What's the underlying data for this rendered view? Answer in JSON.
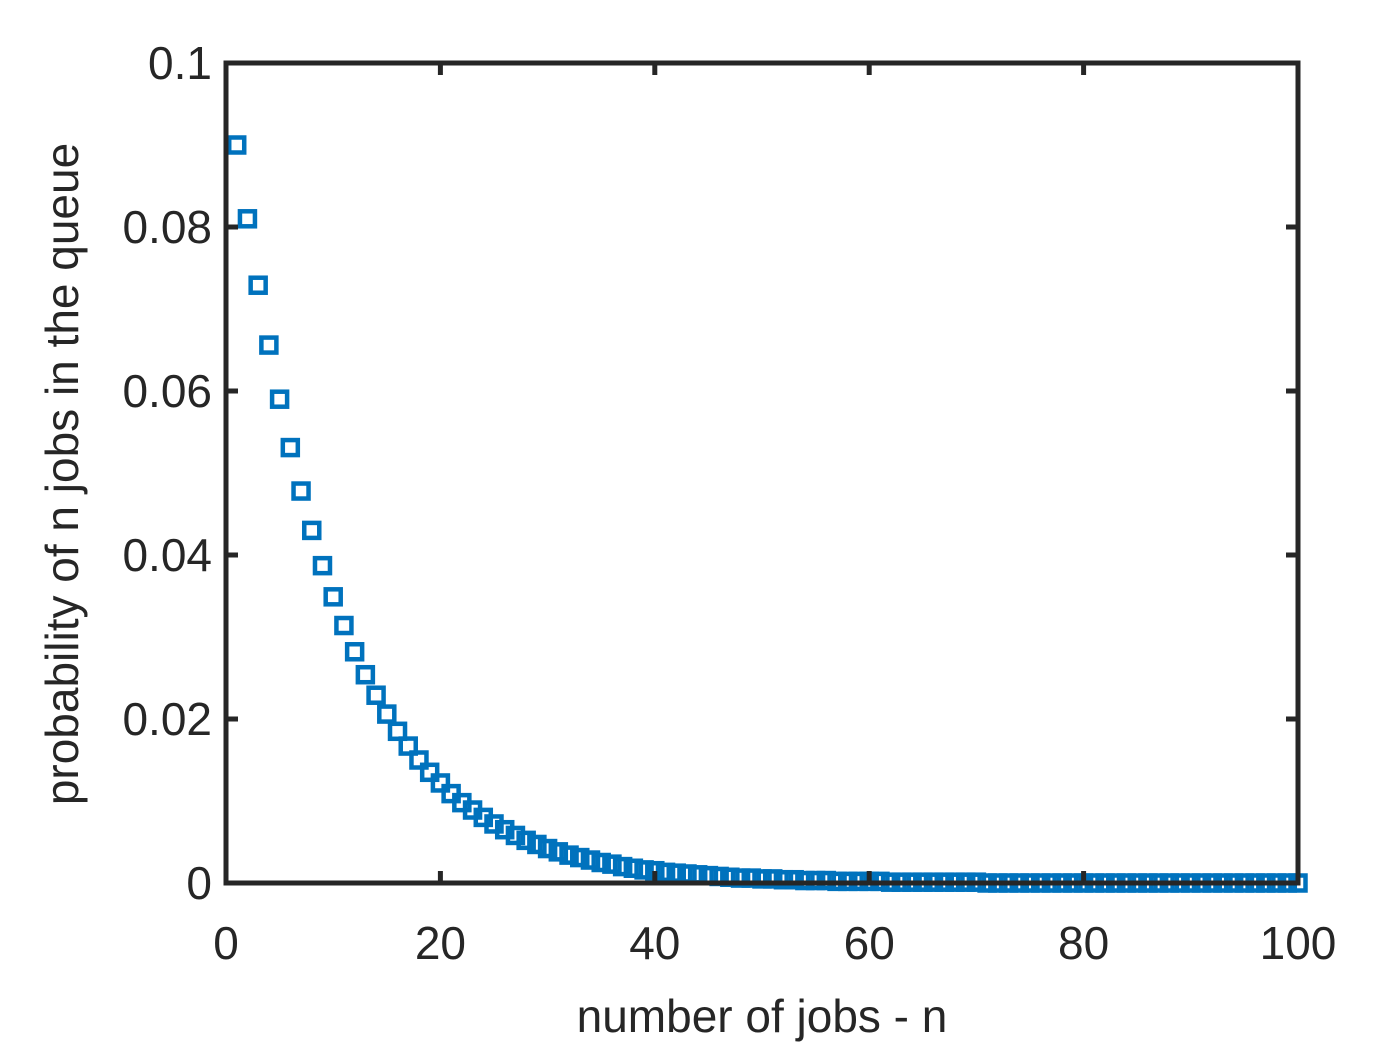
{
  "chart_data": {
    "type": "scatter",
    "title": "",
    "xlabel": "number of jobs - n",
    "ylabel": "probability of n jobs in the queue",
    "xlim": [
      0,
      100
    ],
    "ylim": [
      0,
      0.1
    ],
    "xticks": [
      0,
      20,
      40,
      60,
      80,
      100
    ],
    "xtick_labels": [
      "0",
      "20",
      "40",
      "60",
      "80",
      "100"
    ],
    "yticks": [
      0,
      0.02,
      0.04,
      0.06,
      0.08,
      0.1
    ],
    "ytick_labels": [
      "0",
      "0.02",
      "0.04",
      "0.06",
      "0.08",
      "0.1"
    ],
    "marker": "square",
    "marker_color": "#0072BD",
    "axis_color": "#262626",
    "grid": false,
    "series": [
      {
        "x": [
          1,
          2,
          3,
          4,
          5,
          6,
          7,
          8,
          9,
          10,
          11,
          12,
          13,
          14,
          15,
          16,
          17,
          18,
          19,
          20,
          21,
          22,
          23,
          24,
          25,
          26,
          27,
          28,
          29,
          30,
          31,
          32,
          33,
          34,
          35,
          36,
          37,
          38,
          39,
          40,
          41,
          42,
          43,
          44,
          45,
          46,
          47,
          48,
          49,
          50,
          51,
          52,
          53,
          54,
          55,
          56,
          57,
          58,
          59,
          60,
          61,
          62,
          63,
          64,
          65,
          66,
          67,
          68,
          69,
          70,
          71,
          72,
          73,
          74,
          75,
          76,
          77,
          78,
          79,
          80,
          81,
          82,
          83,
          84,
          85,
          86,
          87,
          88,
          89,
          90,
          91,
          92,
          93,
          94,
          95,
          96,
          97,
          98,
          99,
          100
        ],
        "y": [
          0.09,
          0.081,
          0.0729,
          0.0656,
          0.059,
          0.0531,
          0.0478,
          0.043,
          0.0387,
          0.0349,
          0.0314,
          0.0282,
          0.0254,
          0.0229,
          0.0206,
          0.0185,
          0.0167,
          0.015,
          0.0135,
          0.0122,
          0.0109,
          0.0098,
          0.0089,
          0.008,
          0.0072,
          0.0065,
          0.0058,
          0.0052,
          0.0047,
          0.0042,
          0.0038,
          0.0034,
          0.0031,
          0.0028,
          0.0025,
          0.0023,
          0.002,
          0.0018,
          0.0016,
          0.0015,
          0.0013,
          0.0012,
          0.0011,
          0.001,
          0.0009,
          0.0008,
          0.0007,
          0.0006,
          0.0006,
          0.0005,
          0.0005,
          0.0004,
          0.0004,
          0.0003,
          0.0003,
          0.0003,
          0.0002,
          0.0002,
          0.0002,
          0.0002,
          0.0002,
          0.0001,
          0.0001,
          0.0001,
          0.0001,
          0.0001,
          0.0001,
          0.0001,
          0.0001,
          0.0001,
          0,
          0,
          0,
          0,
          0,
          0,
          0,
          0,
          0,
          0,
          0,
          0,
          0,
          0,
          0,
          0,
          0,
          0,
          0,
          0,
          0,
          0,
          0,
          0,
          0,
          0,
          0,
          0,
          0,
          0
        ]
      }
    ]
  }
}
